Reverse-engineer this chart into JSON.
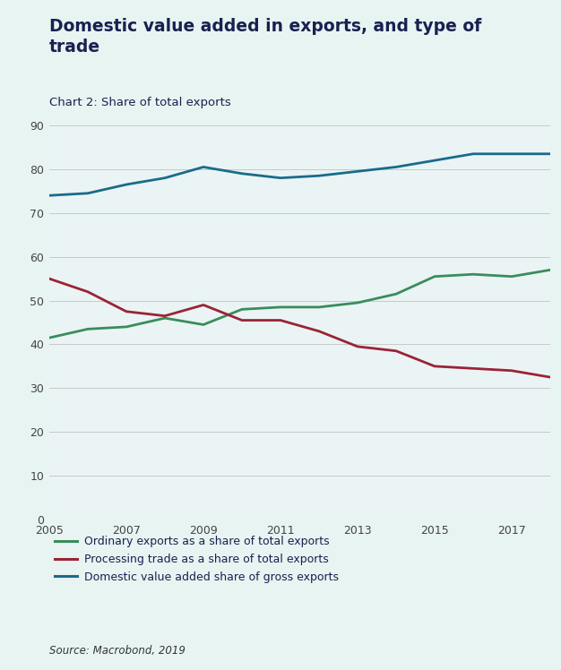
{
  "title": "Domestic value added in exports, and type of\ntrade",
  "subtitle": "Chart 2: Share of total exports",
  "source": "Source: Macrobond, 2019",
  "background_color": "#e8f4f2",
  "plot_background_color": "#eaf4f4",
  "title_color": "#1a2050",
  "subtitle_color": "#1a2050",
  "source_color": "#333333",
  "years": [
    2005,
    2006,
    2007,
    2008,
    2009,
    2010,
    2011,
    2012,
    2013,
    2014,
    2015,
    2016,
    2017,
    2018
  ],
  "ordinary_exports": [
    41.5,
    43.5,
    44.0,
    46.0,
    44.5,
    48.0,
    48.5,
    48.5,
    49.5,
    51.5,
    55.5,
    56.0,
    55.5,
    57.0
  ],
  "processing_trade": [
    55.0,
    52.0,
    47.5,
    46.5,
    49.0,
    45.5,
    45.5,
    43.0,
    39.5,
    38.5,
    35.0,
    34.5,
    34.0,
    32.5
  ],
  "domestic_value_added": [
    74.0,
    74.5,
    76.5,
    78.0,
    80.5,
    79.0,
    78.0,
    78.5,
    79.5,
    80.5,
    82.0,
    83.5,
    83.5,
    83.5
  ],
  "ordinary_color": "#3a8c5c",
  "processing_color": "#9b2335",
  "domestic_color": "#1a6b8a",
  "ylim": [
    0,
    90
  ],
  "yticks": [
    0,
    10,
    20,
    30,
    40,
    50,
    60,
    70,
    80,
    90
  ],
  "xlim": [
    2005,
    2018
  ],
  "xticks": [
    2005,
    2007,
    2009,
    2011,
    2013,
    2015,
    2017
  ],
  "legend_ordinary": "Ordinary exports as a share of total exports",
  "legend_processing": "Processing trade as a share of total exports",
  "legend_domestic": "Domestic value added share of gross exports",
  "line_width": 2.0,
  "top_bar_color": "#2aab8e",
  "grid_color": "#c8c8c8"
}
